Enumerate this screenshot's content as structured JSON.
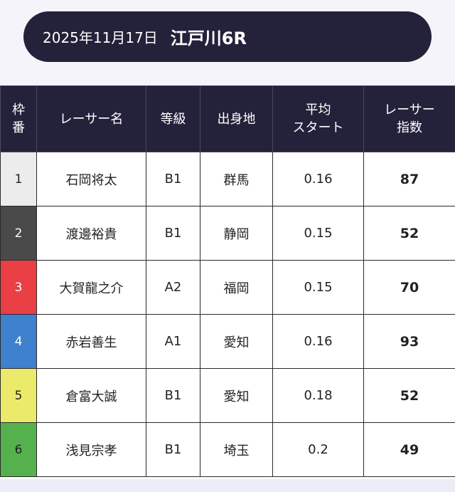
{
  "header": {
    "date": "2025年11月17日",
    "race": "江戸川6R"
  },
  "table": {
    "columns": {
      "frame": [
        "枠",
        "番"
      ],
      "racer_name": "レーサー名",
      "grade": "等級",
      "birthplace": "出身地",
      "avg_start": [
        "平均",
        "スタート"
      ],
      "racer_index": [
        "レーサー",
        "指数"
      ]
    },
    "rows": [
      {
        "frame": "1",
        "frame_color": "#ececec",
        "frame_text_color": "#222222",
        "name": "石岡将太",
        "grade": "B1",
        "birthplace": "群馬",
        "avg_start": "0.16",
        "index": "87"
      },
      {
        "frame": "2",
        "frame_color": "#4a4a4a",
        "frame_text_color": "#ffffff",
        "name": "渡邊裕貴",
        "grade": "B1",
        "birthplace": "静岡",
        "avg_start": "0.15",
        "index": "52"
      },
      {
        "frame": "3",
        "frame_color": "#ea3f45",
        "frame_text_color": "#ffffff",
        "name": "大賀龍之介",
        "grade": "A2",
        "birthplace": "福岡",
        "avg_start": "0.15",
        "index": "70"
      },
      {
        "frame": "4",
        "frame_color": "#3f80cf",
        "frame_text_color": "#ffffff",
        "name": "赤岩善生",
        "grade": "A1",
        "birthplace": "愛知",
        "avg_start": "0.16",
        "index": "93"
      },
      {
        "frame": "5",
        "frame_color": "#ecea6a",
        "frame_text_color": "#222222",
        "name": "倉富大誠",
        "grade": "B1",
        "birthplace": "愛知",
        "avg_start": "0.18",
        "index": "52"
      },
      {
        "frame": "6",
        "frame_color": "#55b14e",
        "frame_text_color": "#222222",
        "name": "浅見宗孝",
        "grade": "B1",
        "birthplace": "埼玉",
        "avg_start": "0.2",
        "index": "49"
      }
    ]
  }
}
